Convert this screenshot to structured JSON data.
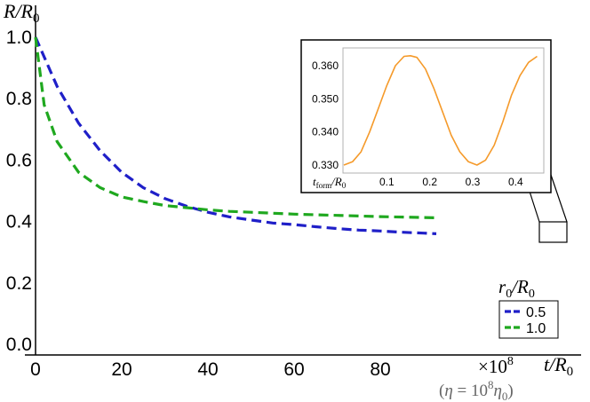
{
  "chart_data": [
    {
      "type": "line",
      "ylabel": "R/R0",
      "xlabel": "t/R0",
      "x_multiplier": "×10^8",
      "x_note": "(η = 10^8 η0)",
      "xlim": [
        0,
        92
      ],
      "ylim": [
        -0.02,
        1.06
      ],
      "xticks": [
        0,
        20,
        40,
        60,
        80
      ],
      "yticks": [
        "0.0",
        "0.2",
        "0.4",
        "0.6",
        "0.8",
        "1.0"
      ],
      "grid": false,
      "legend": {
        "title": "r0/R0",
        "placement": "right",
        "entries": [
          "0.5",
          "1.0"
        ]
      },
      "series": [
        {
          "name": "0.5",
          "color": "#1f1fc8",
          "style": "dashed",
          "x": [
            0,
            5,
            10,
            15,
            20,
            25,
            30,
            35,
            40,
            45,
            50,
            55,
            60,
            65,
            70,
            75,
            80,
            85,
            90,
            93
          ],
          "y": [
            1.0,
            0.84,
            0.72,
            0.63,
            0.56,
            0.51,
            0.475,
            0.45,
            0.43,
            0.415,
            0.405,
            0.395,
            0.39,
            0.383,
            0.377,
            0.372,
            0.369,
            0.365,
            0.362,
            0.36
          ]
        },
        {
          "name": "1.0",
          "color": "#1fa81f",
          "style": "dashed",
          "x": [
            0,
            2,
            5,
            10,
            15,
            20,
            25,
            30,
            35,
            40,
            45,
            50,
            60,
            70,
            80,
            90,
            93
          ],
          "y": [
            1.0,
            0.78,
            0.66,
            0.56,
            0.51,
            0.48,
            0.465,
            0.452,
            0.445,
            0.438,
            0.433,
            0.43,
            0.424,
            0.42,
            0.416,
            0.413,
            0.412
          ]
        }
      ]
    },
    {
      "type": "line",
      "inset": true,
      "xlabel": "t_form/R0",
      "xlim": [
        0,
        0.45
      ],
      "ylim": [
        0.329,
        0.364
      ],
      "xticks": [
        "0.1",
        "0.2",
        "0.3",
        "0.4"
      ],
      "yticks": [
        "0.330",
        "0.340",
        "0.350",
        "0.360"
      ],
      "series": [
        {
          "color": "#f59a2a",
          "x": [
            0.0,
            0.02,
            0.04,
            0.06,
            0.08,
            0.1,
            0.12,
            0.14,
            0.155,
            0.17,
            0.19,
            0.21,
            0.23,
            0.25,
            0.27,
            0.29,
            0.31,
            0.33,
            0.35,
            0.37,
            0.39,
            0.41,
            0.43,
            0.45
          ],
          "y": [
            0.33,
            0.331,
            0.334,
            0.34,
            0.347,
            0.354,
            0.36,
            0.3628,
            0.363,
            0.3625,
            0.359,
            0.353,
            0.346,
            0.339,
            0.334,
            0.331,
            0.33,
            0.3315,
            0.336,
            0.343,
            0.351,
            0.357,
            0.361,
            0.3628
          ]
        }
      ]
    }
  ]
}
